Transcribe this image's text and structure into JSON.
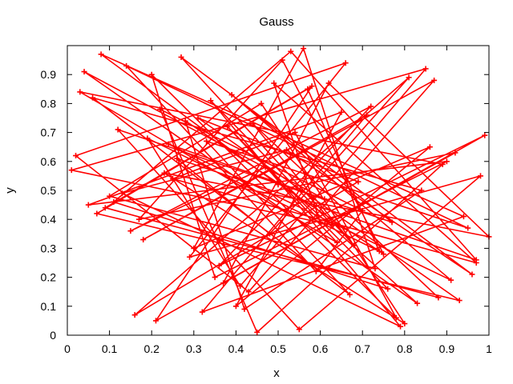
{
  "chart_data": {
    "type": "line",
    "title": "Gauss",
    "xlabel": "x",
    "ylabel": "y",
    "xlim": [
      0,
      1
    ],
    "ylim": [
      0,
      1
    ],
    "x_ticks": [
      "0",
      "0.1",
      "0.2",
      "0.3",
      "0.4",
      "0.5",
      "0.6",
      "0.7",
      "0.8",
      "0.9",
      "1"
    ],
    "y_ticks": [
      "0",
      "0.1",
      "0.2",
      "0.3",
      "0.4",
      "0.5",
      "0.6",
      "0.7",
      "0.8",
      "0.9"
    ],
    "grid": false,
    "legend": "none",
    "markers": "plus",
    "series": [
      {
        "color": "#ff0000",
        "x": [
          0.5,
          0.08,
          0.94,
          0.32,
          0.71,
          0.18,
          0.87,
          0.43,
          0.02,
          0.66,
          0.29,
          0.98,
          0.55,
          0.12,
          0.77,
          0.39,
          0.91,
          0.24,
          0.61,
          0.04,
          0.83,
          0.47,
          0.15,
          0.72,
          0.36,
          0.99,
          0.21,
          0.58,
          0.09,
          0.88,
          0.44,
          0.68,
          0.27,
          0.96,
          0.52,
          0.13,
          0.79,
          0.34,
          0.63,
          0.01,
          0.85,
          0.41,
          0.19,
          0.74,
          0.57,
          0.07,
          0.93,
          0.31,
          0.69,
          0.16,
          0.81,
          0.48,
          0.26,
          0.97,
          0.53,
          0.11,
          0.76,
          0.38,
          0.64,
          0.03,
          0.89,
          0.45,
          0.22,
          0.7,
          0.59,
          0.14,
          0.95,
          0.33,
          0.67,
          0.06,
          0.84,
          0.42,
          0.28,
          0.75,
          0.51,
          0.17,
          0.92,
          0.37,
          0.62,
          1.0,
          0.23,
          0.8,
          0.46,
          0.1,
          0.73,
          0.56,
          0.3,
          0.86,
          0.4,
          0.65,
          0.05,
          0.9,
          0.35,
          0.2,
          0.78,
          0.54,
          0.25,
          0.97,
          0.49,
          0.6
        ],
        "y": [
          0.52,
          0.97,
          0.41,
          0.08,
          0.76,
          0.33,
          0.88,
          0.15,
          0.62,
          0.94,
          0.27,
          0.55,
          0.02,
          0.71,
          0.39,
          0.83,
          0.19,
          0.66,
          0.47,
          0.91,
          0.11,
          0.58,
          0.36,
          0.79,
          0.24,
          0.69,
          0.05,
          0.86,
          0.44,
          0.13,
          0.73,
          0.31,
          0.96,
          0.21,
          0.64,
          0.49,
          0.03,
          0.81,
          0.38,
          0.57,
          0.92,
          0.17,
          0.68,
          0.29,
          0.85,
          0.42,
          0.12,
          0.75,
          0.53,
          0.07,
          0.89,
          0.35,
          0.61,
          0.26,
          0.98,
          0.46,
          0.16,
          0.72,
          0.32,
          0.84,
          0.59,
          0.01,
          0.78,
          0.43,
          0.22,
          0.93,
          0.37,
          0.67,
          0.14,
          0.82,
          0.5,
          0.09,
          0.74,
          0.28,
          0.95,
          0.4,
          0.63,
          0.18,
          0.87,
          0.34,
          0.56,
          0.04,
          0.8,
          0.48,
          0.23,
          0.99,
          0.3,
          0.65,
          0.1,
          0.77,
          0.45,
          0.6,
          0.2,
          0.9,
          0.06,
          0.7,
          0.54,
          0.25,
          0.87,
          0.39
        ]
      }
    ]
  }
}
